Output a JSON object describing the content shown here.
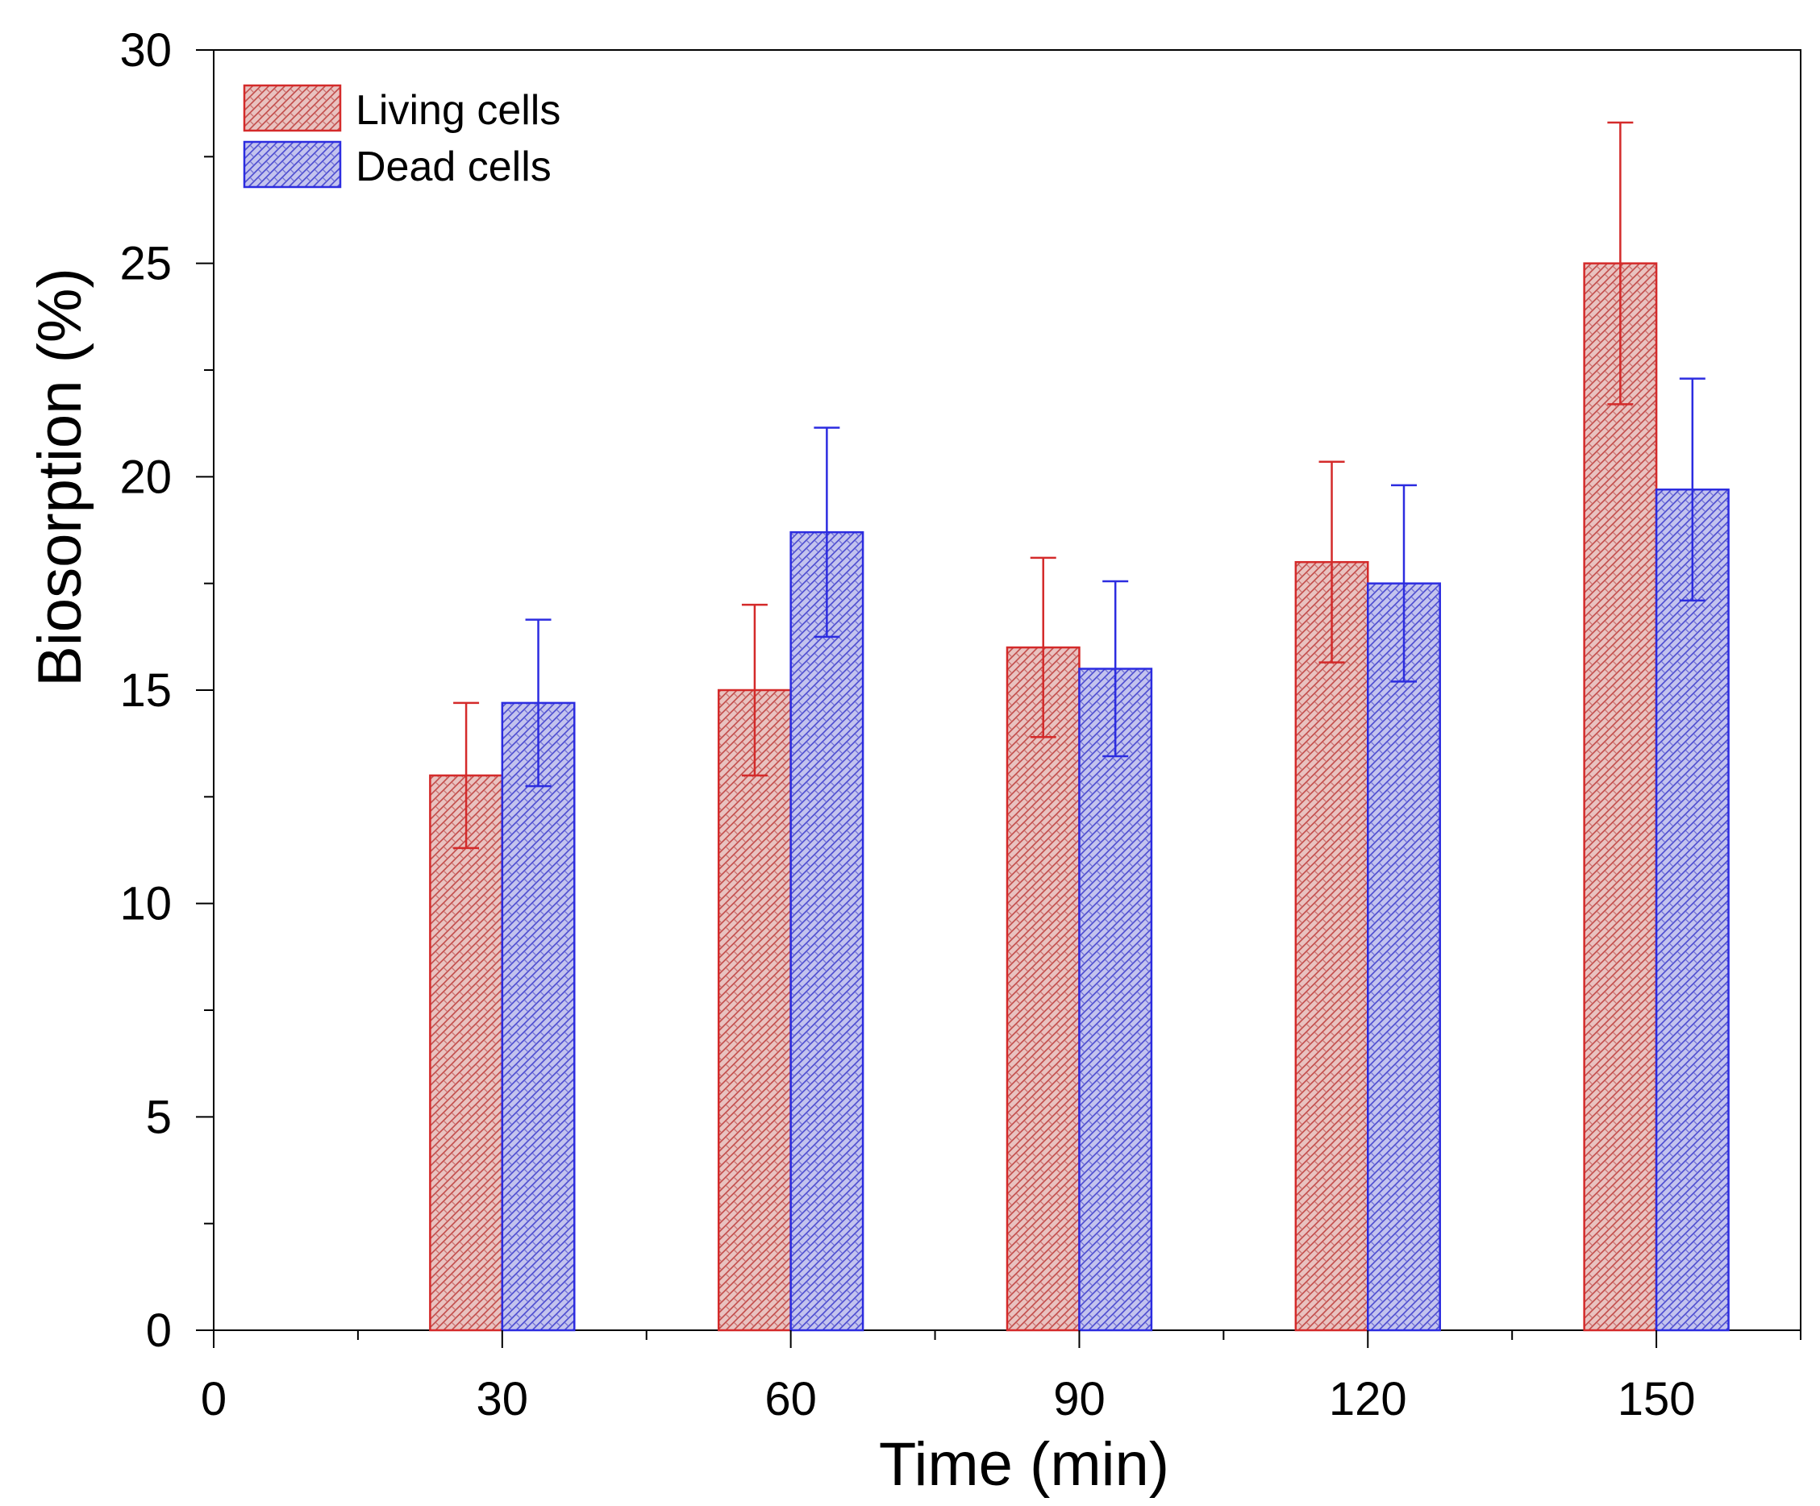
{
  "chart_data": {
    "type": "bar",
    "xlabel": "Time (min)",
    "ylabel": "Biosorption (%)",
    "xlim": [
      0,
      165
    ],
    "ylim": [
      0,
      30
    ],
    "x_ticks": [
      "0",
      "30",
      "60",
      "90",
      "120",
      "150"
    ],
    "y_ticks": [
      "0",
      "5",
      "10",
      "15",
      "20",
      "25",
      "30"
    ],
    "categories": [
      30,
      60,
      90,
      120,
      150
    ],
    "series": [
      {
        "name": "Living cells",
        "color": "#d42a2a",
        "fill": "#e6b7b5",
        "values": [
          13.0,
          15.0,
          16.0,
          18.0,
          25.0
        ],
        "errors": [
          1.7,
          2.0,
          2.1,
          2.35,
          3.3
        ]
      },
      {
        "name": "Dead cells",
        "color": "#2c2ce0",
        "fill": "#b8b8ea",
        "values": [
          14.7,
          18.7,
          15.5,
          17.5,
          19.7
        ],
        "errors": [
          1.95,
          2.45,
          2.05,
          2.3,
          2.6
        ]
      }
    ],
    "legend_position": "top-left",
    "grid": false
  }
}
